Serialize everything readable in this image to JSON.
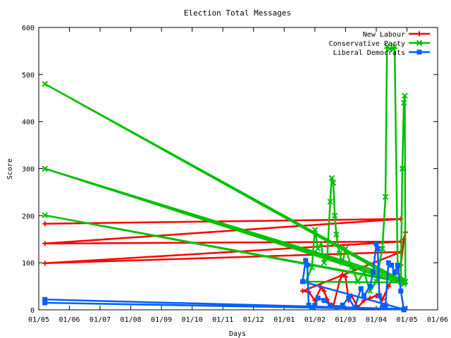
{
  "chart_data": {
    "type": "line",
    "title": "Election Total Messages",
    "xlabel": "Days",
    "ylabel": "Score",
    "ylim": [
      0,
      600
    ],
    "yticks": [
      0,
      100,
      200,
      300,
      400,
      500,
      600
    ],
    "xticks": [
      "01/05",
      "01/06",
      "01/07",
      "01/08",
      "01/09",
      "01/10",
      "01/11",
      "01/12",
      "01/01",
      "01/02",
      "01/03",
      "01/04",
      "01/05",
      "01/06"
    ],
    "legend_position": "top-right",
    "grid": false,
    "series": [
      {
        "name": "New Labour",
        "color": "#ff0000",
        "marker": "plus",
        "points": [
          [
            0.2,
            183
          ],
          [
            11.8,
            193
          ],
          [
            0.2,
            141
          ],
          [
            11.8,
            145
          ],
          [
            0.2,
            99
          ],
          [
            11.8,
            123
          ],
          [
            8.6,
            40
          ],
          [
            8.8,
            38
          ],
          [
            9.0,
            20
          ],
          [
            9.2,
            48
          ],
          [
            9.3,
            40
          ],
          [
            9.4,
            22
          ],
          [
            9.5,
            10
          ],
          [
            9.6,
            8
          ],
          [
            9.8,
            60
          ],
          [
            9.9,
            75
          ],
          [
            10.0,
            70
          ],
          [
            10.1,
            20
          ],
          [
            10.2,
            30
          ],
          [
            10.4,
            5
          ],
          [
            10.6,
            20
          ],
          [
            10.8,
            25
          ],
          [
            11.0,
            30
          ],
          [
            11.2,
            22
          ],
          [
            11.4,
            50
          ],
          [
            11.6,
            75
          ],
          [
            11.8,
            95
          ],
          [
            11.9,
            150
          ],
          [
            11.95,
            165
          ]
        ]
      },
      {
        "name": "Conservative Party",
        "color": "#00c000",
        "marker": "x",
        "points": [
          [
            0.2,
            480
          ],
          [
            11.9,
            60
          ],
          [
            0.2,
            480
          ],
          [
            11.9,
            55
          ],
          [
            0.2,
            300
          ],
          [
            11.9,
            65
          ],
          [
            0.2,
            300
          ],
          [
            11.9,
            60
          ],
          [
            0.2,
            201
          ],
          [
            11.9,
            58
          ],
          [
            8.7,
            60
          ],
          [
            8.9,
            90
          ],
          [
            9.0,
            170
          ],
          [
            9.1,
            130
          ],
          [
            9.2,
            140
          ],
          [
            9.3,
            100
          ],
          [
            9.4,
            110
          ],
          [
            9.5,
            230
          ],
          [
            9.55,
            280
          ],
          [
            9.6,
            270
          ],
          [
            9.65,
            200
          ],
          [
            9.7,
            160
          ],
          [
            9.8,
            120
          ],
          [
            9.9,
            100
          ],
          [
            10.0,
            130
          ],
          [
            10.2,
            90
          ],
          [
            10.4,
            60
          ],
          [
            10.6,
            80
          ],
          [
            10.8,
            40
          ],
          [
            11.0,
            60
          ],
          [
            11.2,
            130
          ],
          [
            11.3,
            240
          ],
          [
            11.35,
            560
          ],
          [
            11.45,
            555
          ],
          [
            11.55,
            555
          ],
          [
            11.6,
            560
          ],
          [
            11.7,
            80
          ],
          [
            11.8,
            60
          ],
          [
            11.85,
            300
          ],
          [
            11.9,
            440
          ],
          [
            11.93,
            455
          ],
          [
            11.95,
            60
          ]
        ]
      },
      {
        "name": "Liberal Democrats",
        "color": "#0060ff",
        "marker": "square",
        "points": [
          [
            0.2,
            22
          ],
          [
            11.9,
            2
          ],
          [
            0.2,
            15
          ],
          [
            11.9,
            1
          ],
          [
            8.6,
            60
          ],
          [
            8.7,
            105
          ],
          [
            8.75,
            95
          ],
          [
            8.8,
            10
          ],
          [
            8.9,
            5
          ],
          [
            9.0,
            10
          ],
          [
            9.1,
            25
          ],
          [
            9.3,
            20
          ],
          [
            9.5,
            10
          ],
          [
            9.7,
            5
          ],
          [
            9.9,
            10
          ],
          [
            10.1,
            25
          ],
          [
            10.3,
            5
          ],
          [
            10.5,
            45
          ],
          [
            10.6,
            30
          ],
          [
            10.8,
            50
          ],
          [
            10.9,
            80
          ],
          [
            11.0,
            140
          ],
          [
            11.05,
            130
          ],
          [
            11.1,
            30
          ],
          [
            11.2,
            5
          ],
          [
            11.3,
            10
          ],
          [
            11.4,
            100
          ],
          [
            11.5,
            95
          ],
          [
            11.6,
            80
          ],
          [
            11.7,
            95
          ],
          [
            11.8,
            40
          ],
          [
            11.9,
            0
          ]
        ]
      }
    ]
  }
}
